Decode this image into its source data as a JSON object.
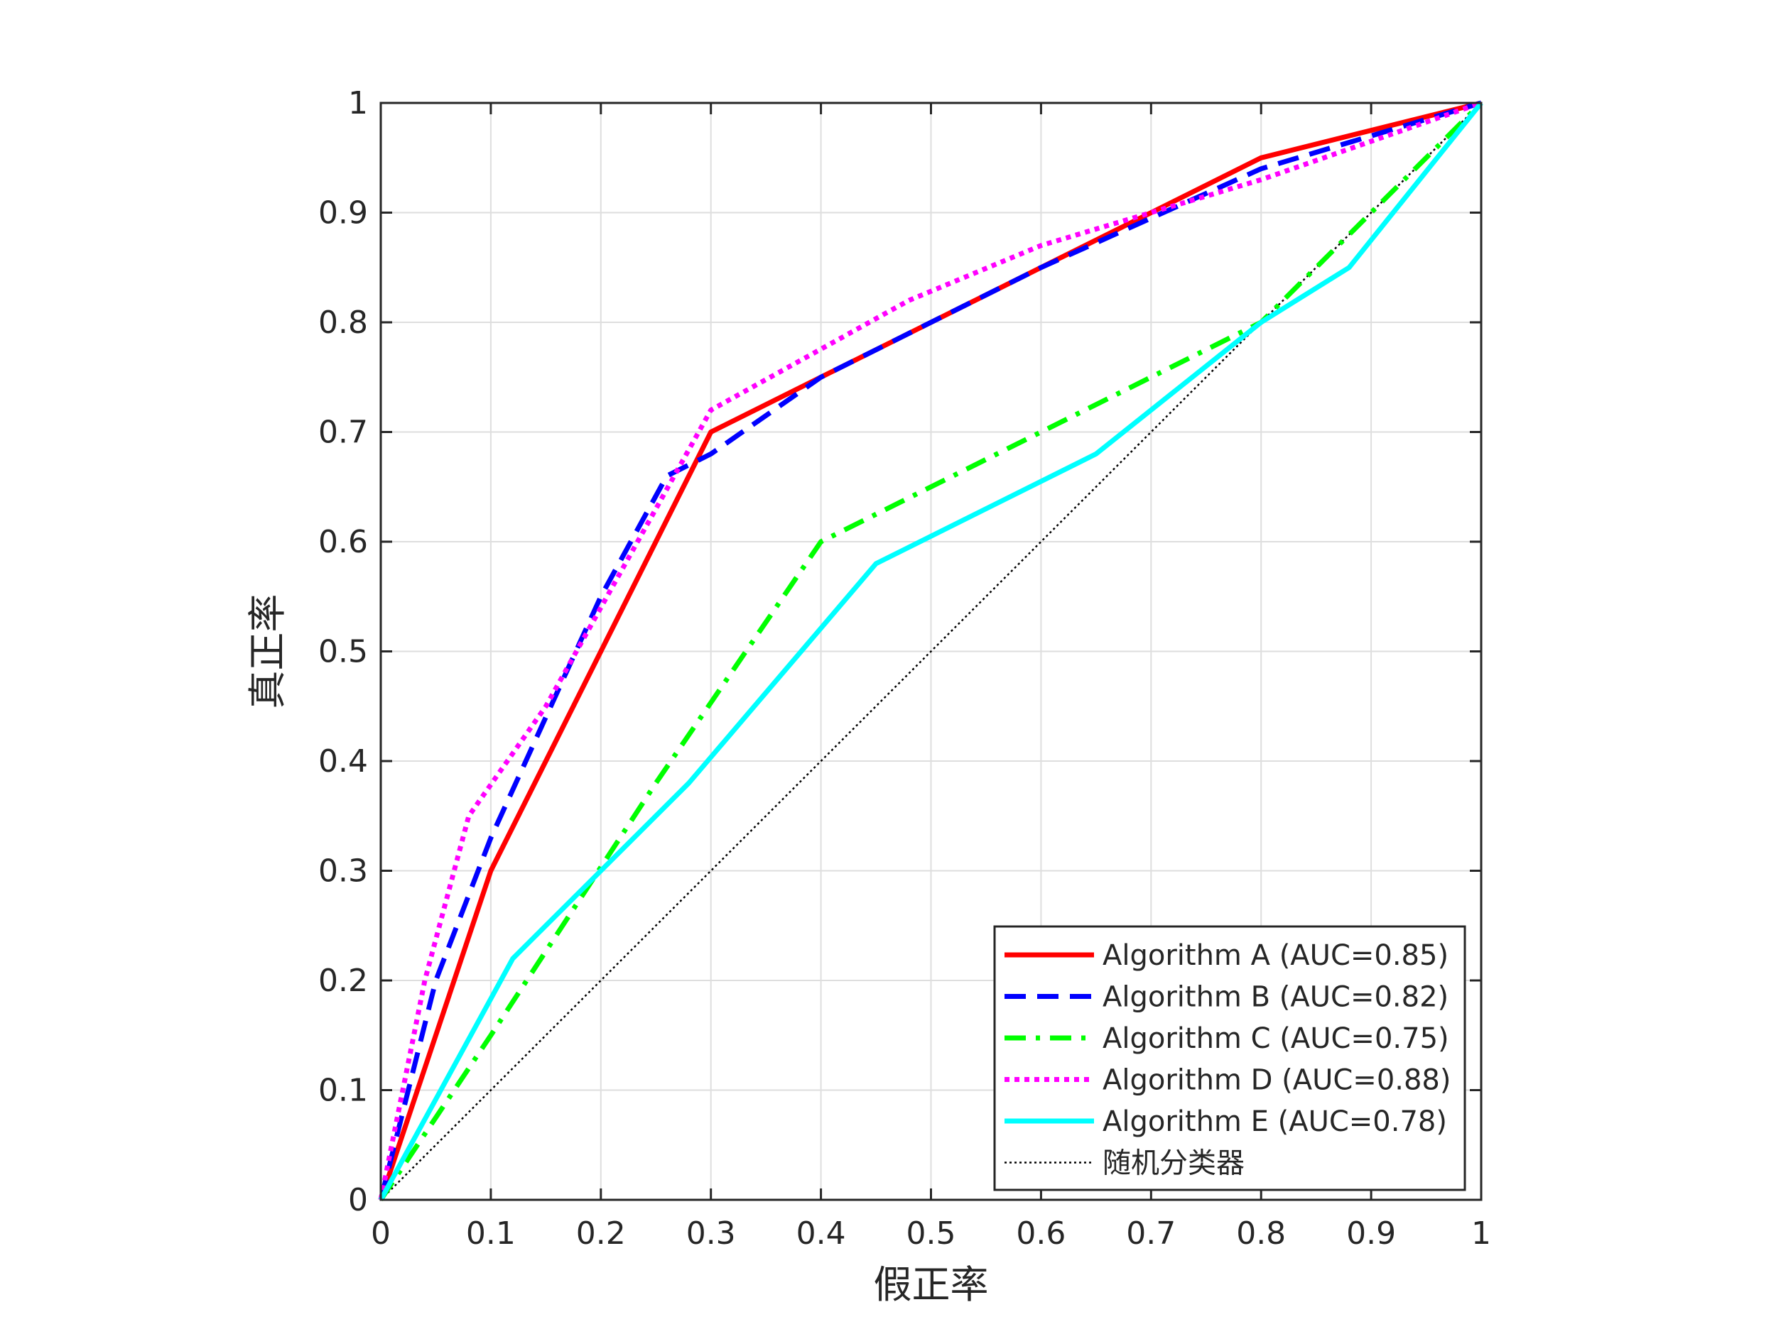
{
  "chart_data": {
    "type": "line",
    "title": "",
    "xlabel": "假正率",
    "ylabel": "真正率",
    "xlim": [
      0,
      1
    ],
    "ylim": [
      0,
      1
    ],
    "xticks": [
      0,
      0.1,
      0.2,
      0.3,
      0.4,
      0.5,
      0.6,
      0.7,
      0.8,
      0.9,
      1
    ],
    "yticks": [
      0,
      0.1,
      0.2,
      0.3,
      0.4,
      0.5,
      0.6,
      0.7,
      0.8,
      0.9,
      1
    ],
    "xtick_labels": [
      "0",
      "0.1",
      "0.2",
      "0.3",
      "0.4",
      "0.5",
      "0.6",
      "0.7",
      "0.8",
      "0.9",
      "1"
    ],
    "ytick_labels": [
      "0",
      "0.1",
      "0.2",
      "0.3",
      "0.4",
      "0.5",
      "0.6",
      "0.7",
      "0.8",
      "0.9",
      "1"
    ],
    "grid": true,
    "legend_position": "bottom-right",
    "series": [
      {
        "name": "Algorithm A (AUC=0.85)",
        "color": "#ff0000",
        "style": "solid",
        "x": [
          0,
          0.1,
          0.3,
          0.4,
          0.6,
          0.8,
          1
        ],
        "y": [
          0,
          0.3,
          0.7,
          0.75,
          0.85,
          0.95,
          1
        ]
      },
      {
        "name": "Algorithm B (AUC=0.82)",
        "color": "#0000ff",
        "style": "dashed",
        "x": [
          0,
          0.05,
          0.1,
          0.2,
          0.26,
          0.3,
          0.4,
          0.6,
          0.8,
          1
        ],
        "y": [
          0,
          0.2,
          0.33,
          0.55,
          0.66,
          0.68,
          0.75,
          0.85,
          0.94,
          1
        ]
      },
      {
        "name": "Algorithm C (AUC=0.75)",
        "color": "#00ff00",
        "style": "dashdot",
        "x": [
          0,
          0.1,
          0.25,
          0.4,
          0.6,
          0.8,
          1
        ],
        "y": [
          0,
          0.15,
          0.38,
          0.6,
          0.7,
          0.8,
          1
        ]
      },
      {
        "name": "Algorithm D (AUC=0.88)",
        "color": "#ff00ff",
        "style": "dotted",
        "x": [
          0,
          0.04,
          0.08,
          0.15,
          0.3,
          0.48,
          0.6,
          0.8,
          1
        ],
        "y": [
          0,
          0.2,
          0.35,
          0.45,
          0.72,
          0.82,
          0.87,
          0.93,
          1
        ]
      },
      {
        "name": "Algorithm E (AUC=0.78)",
        "color": "#00ffff",
        "style": "solid",
        "x": [
          0,
          0.12,
          0.28,
          0.45,
          0.65,
          0.8,
          0.88,
          1
        ],
        "y": [
          0,
          0.22,
          0.38,
          0.58,
          0.68,
          0.8,
          0.85,
          1
        ]
      },
      {
        "name": "随机分类器",
        "color": "#000000",
        "style": "dotted-thin",
        "x": [
          0,
          1
        ],
        "y": [
          0,
          1
        ]
      }
    ]
  }
}
